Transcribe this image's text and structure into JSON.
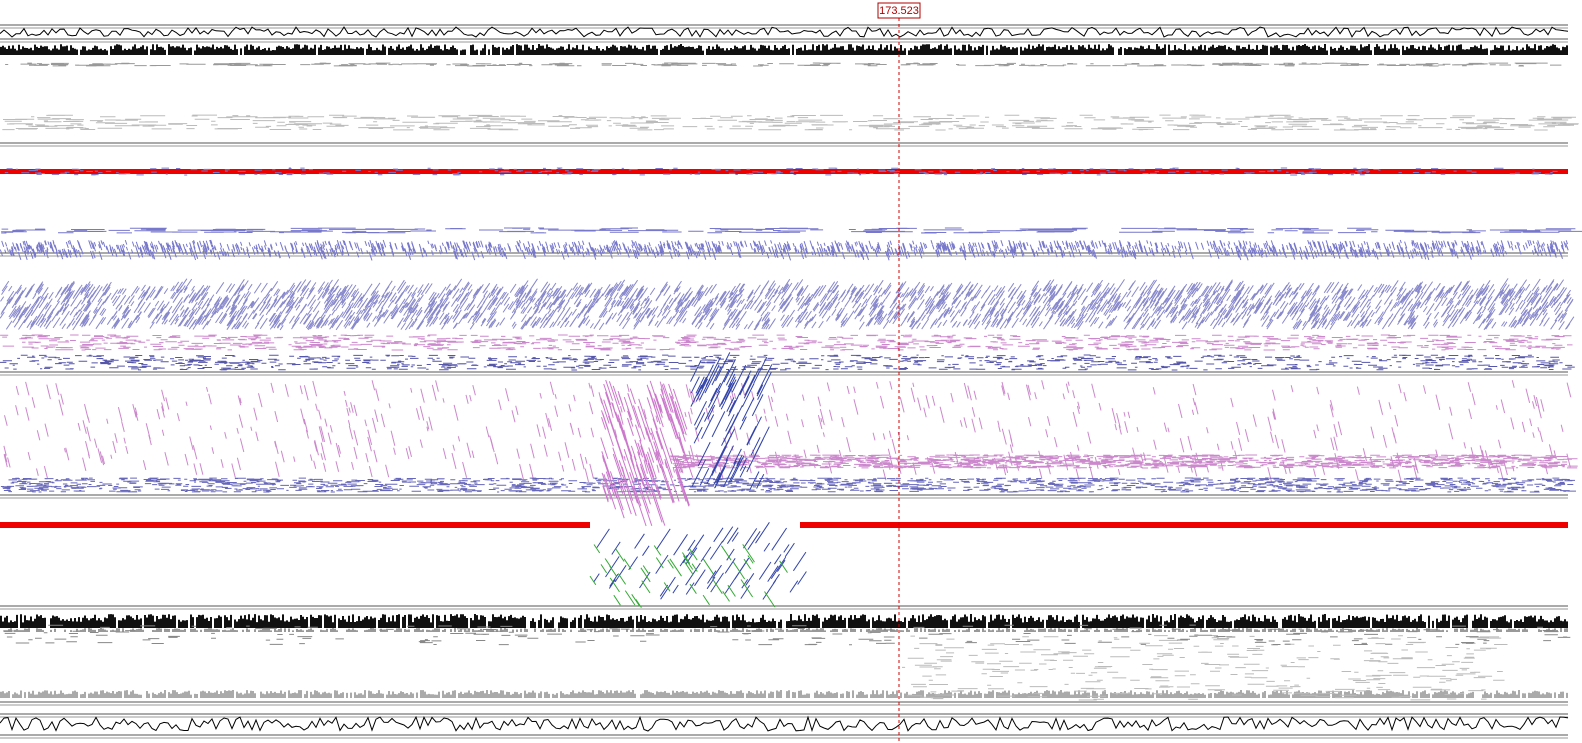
{
  "cursor_label": "173.523"
}
